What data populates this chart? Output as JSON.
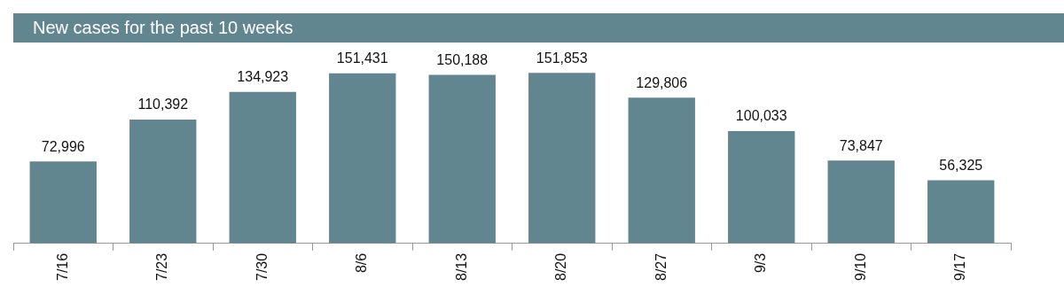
{
  "chart_data": {
    "type": "bar",
    "title": "New cases for the past 10 weeks",
    "categories": [
      "7/16",
      "7/23",
      "7/30",
      "8/6",
      "8/13",
      "8/20",
      "8/27",
      "9/3",
      "9/10",
      "9/17"
    ],
    "values": [
      72996,
      110392,
      134923,
      151431,
      150188,
      151853,
      129806,
      100033,
      73847,
      56325
    ],
    "value_labels": [
      "72,996",
      "110,392",
      "134,923",
      "151,431",
      "150,188",
      "151,853",
      "129,806",
      "100,033",
      "73,847",
      "56,325"
    ],
    "color": "#62868f",
    "legend": false
  }
}
